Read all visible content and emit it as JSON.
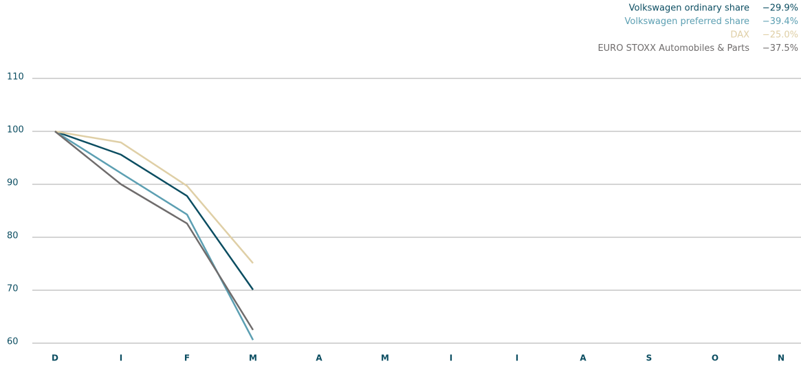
{
  "chart_data": {
    "type": "line",
    "categories": [
      "D",
      "I",
      "F",
      "M",
      "A",
      "M",
      "I",
      "I",
      "A",
      "S",
      "O",
      "N"
    ],
    "series": [
      {
        "name": "Volkswagen ordinary share",
        "change": "−29.9%",
        "color": "#0b4d61",
        "values": [
          100,
          95.6,
          87.8,
          70.1,
          null,
          null,
          null,
          null,
          null,
          null,
          null,
          null
        ]
      },
      {
        "name": "Volkswagen preferred share",
        "change": "−39.4%",
        "color": "#5c9fb2",
        "values": [
          100,
          92.1,
          84.3,
          60.6,
          null,
          null,
          null,
          null,
          null,
          null,
          null,
          null
        ]
      },
      {
        "name": "DAX",
        "change": "−25.0%",
        "color": "#dfcfa6",
        "values": [
          100,
          97.9,
          89.7,
          75.1,
          null,
          null,
          null,
          null,
          null,
          null,
          null,
          null
        ]
      },
      {
        "name": "EURO STOXX Automobiles & Parts",
        "change": "−37.5%",
        "color": "#6f6c6c",
        "values": [
          100,
          90,
          82.6,
          62.5,
          null,
          null,
          null,
          null,
          null,
          null,
          null,
          null
        ]
      }
    ],
    "ylim": [
      60,
      110
    ],
    "yticks": [
      60,
      70,
      80,
      90,
      100,
      110
    ],
    "grid": true,
    "legend": "top-right"
  }
}
